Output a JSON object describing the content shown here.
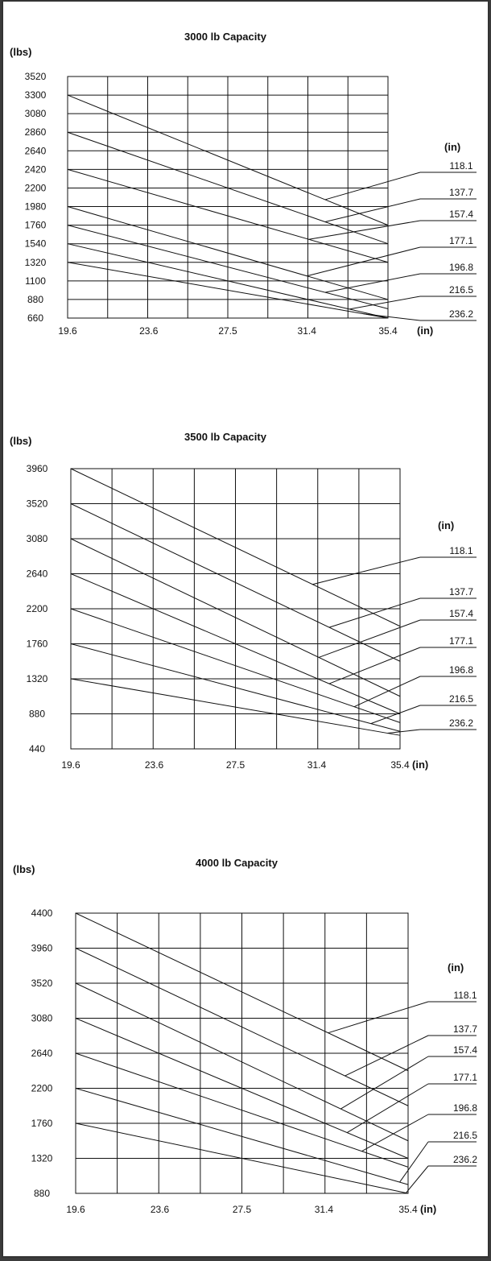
{
  "chart_data": [
    {
      "type": "line",
      "title": "3000 lb Capacity",
      "ylabel": "(lbs)",
      "xlabel": "(in)",
      "legend_title": "(in)",
      "x_ticks": [
        "19.6",
        "23.6",
        "27.5",
        "31.4",
        "35.4"
      ],
      "y_ticks": [
        "3520",
        "3300",
        "3080",
        "2860",
        "2640",
        "2420",
        "2200",
        "1980",
        "1760",
        "1540",
        "1320",
        "1100",
        "880",
        "660"
      ],
      "xlim": [
        19.6,
        35.4
      ],
      "ylim": [
        660,
        3520
      ],
      "grid": true,
      "legend_placement": "right",
      "series": [
        {
          "name": "118.1",
          "x": [
            19.6,
            35.4
          ],
          "y": [
            3300,
            1760
          ],
          "marker_x": 32.3
        },
        {
          "name": "137.7",
          "x": [
            19.6,
            35.4
          ],
          "y": [
            2860,
            1540
          ],
          "marker_x": 32.3
        },
        {
          "name": "157.4",
          "x": [
            19.6,
            35.4
          ],
          "y": [
            2420,
            1320
          ],
          "marker_x": 31.5
        },
        {
          "name": "177.1",
          "x": [
            19.6,
            35.4
          ],
          "y": [
            1980,
            880
          ],
          "marker_x": 31.4
        },
        {
          "name": "196.8",
          "x": [
            19.6,
            35.4
          ],
          "y": [
            1760,
            770
          ],
          "marker_x": 32.3
        },
        {
          "name": "216.5",
          "x": [
            19.6,
            35.4
          ],
          "y": [
            1540,
            660
          ],
          "marker_x": 33.5
        },
        {
          "name": "236.2",
          "x": [
            19.6,
            35.4
          ],
          "y": [
            1320,
            660
          ],
          "marker_x": 34.2
        }
      ]
    },
    {
      "type": "line",
      "title": "3500 lb Capacity",
      "ylabel": "(lbs)",
      "xlabel": "(in)",
      "legend_title": "(in)",
      "x_ticks": [
        "19.6",
        "23.6",
        "27.5",
        "31.4",
        "35.4"
      ],
      "y_ticks": [
        "3960",
        "3520",
        "3080",
        "2640",
        "2200",
        "1760",
        "1320",
        "880",
        "440"
      ],
      "xlim": [
        19.6,
        35.4
      ],
      "ylim": [
        440,
        3960
      ],
      "grid": true,
      "legend_placement": "right",
      "series": [
        {
          "name": "118.1",
          "x": [
            19.6,
            35.4
          ],
          "y": [
            3960,
            1980
          ],
          "marker_x": 31.2
        },
        {
          "name": "137.7",
          "x": [
            19.6,
            35.4
          ],
          "y": [
            3520,
            1540
          ],
          "marker_x": 32.0
        },
        {
          "name": "157.4",
          "x": [
            19.6,
            35.4
          ],
          "y": [
            3080,
            1100
          ],
          "marker_x": 31.5
        },
        {
          "name": "177.1",
          "x": [
            19.6,
            35.4
          ],
          "y": [
            2640,
            880
          ],
          "marker_x": 32.0
        },
        {
          "name": "196.8",
          "x": [
            19.6,
            35.4
          ],
          "y": [
            2200,
            770
          ],
          "marker_x": 33.2
        },
        {
          "name": "216.5",
          "x": [
            19.6,
            35.4
          ],
          "y": [
            1760,
            660
          ],
          "marker_x": 34.0
        },
        {
          "name": "236.2",
          "x": [
            19.6,
            35.4
          ],
          "y": [
            1320,
            610
          ],
          "marker_x": 34.8
        }
      ]
    },
    {
      "type": "line",
      "title": "4000 lb Capacity",
      "ylabel": "(lbs)",
      "xlabel": "(in)",
      "legend_title": "(in)",
      "x_ticks": [
        "19.6",
        "23.6",
        "27.5",
        "31.4",
        "35.4"
      ],
      "y_ticks": [
        "4400",
        "3960",
        "3520",
        "3080",
        "2640",
        "2200",
        "1760",
        "1320",
        "880"
      ],
      "xlim": [
        19.6,
        35.4
      ],
      "ylim": [
        880,
        4400
      ],
      "grid": true,
      "legend_placement": "right",
      "series": [
        {
          "name": "118.1",
          "x": [
            19.6,
            35.4
          ],
          "y": [
            4400,
            2420
          ],
          "marker_x": 31.6
        },
        {
          "name": "137.7",
          "x": [
            19.6,
            35.4
          ],
          "y": [
            3960,
            1980
          ],
          "marker_x": 32.4
        },
        {
          "name": "157.4",
          "x": [
            19.6,
            35.4
          ],
          "y": [
            3520,
            1540
          ],
          "marker_x": 32.2
        },
        {
          "name": "177.1",
          "x": [
            19.6,
            35.4
          ],
          "y": [
            3080,
            1320
          ],
          "marker_x": 32.5
        },
        {
          "name": "196.8",
          "x": [
            19.6,
            35.4
          ],
          "y": [
            2640,
            1210
          ],
          "marker_x": 33.2
        },
        {
          "name": "216.5",
          "x": [
            19.6,
            35.4
          ],
          "y": [
            2200,
            990
          ],
          "marker_x": 35.0
        },
        {
          "name": "236.2",
          "x": [
            19.6,
            35.4
          ],
          "y": [
            1760,
            880
          ],
          "marker_x": 35.3
        }
      ]
    }
  ]
}
